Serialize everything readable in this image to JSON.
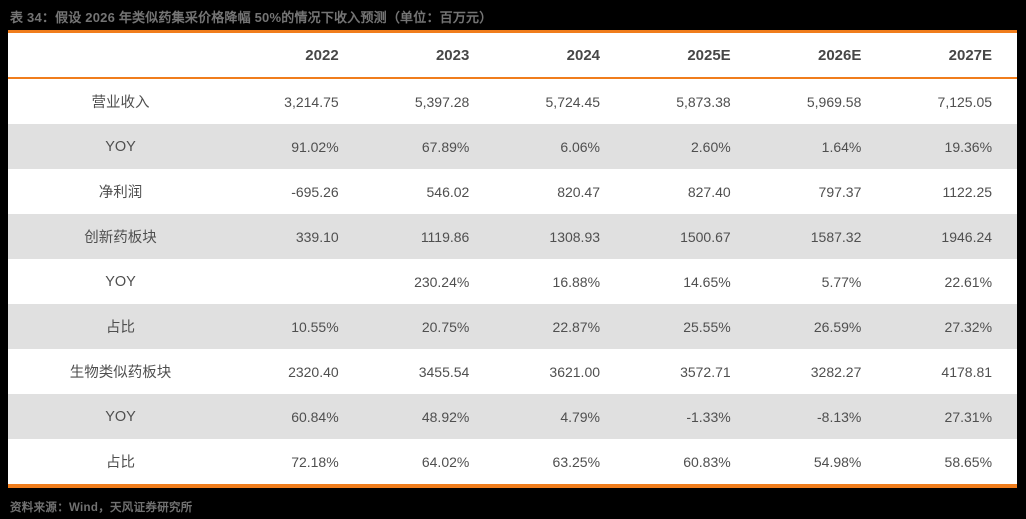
{
  "title": "表 34：假设 2026 年类似药集采价格降幅 50%的情况下收入预测（单位：百万元）",
  "source": "资料来源：Wind，天风证券研究所",
  "colors": {
    "accent_orange": "#F07D1C",
    "page_background": "#000000",
    "table_background": "#FFFFFF",
    "stripe_background": "#E0E0E0",
    "header_text": "#474747",
    "body_text": "#4F4F4F",
    "muted_text": "#747474"
  },
  "chart_data": {
    "type": "table",
    "title": "表 34：假设 2026 年类似药集采价格降幅 50%的情况下收入预测（单位：百万元）",
    "columns": [
      "",
      "2022",
      "2023",
      "2024",
      "2025E",
      "2026E",
      "2027E"
    ],
    "rows": [
      {
        "label": "营业收入",
        "values": [
          "3,214.75",
          "5,397.28",
          "5,724.45",
          "5,873.38",
          "5,969.58",
          "7,125.05"
        ]
      },
      {
        "label": "YOY",
        "values": [
          "91.02%",
          "67.89%",
          "6.06%",
          "2.60%",
          "1.64%",
          "19.36%"
        ]
      },
      {
        "label": "净利润",
        "values": [
          "-695.26",
          "546.02",
          "820.47",
          "827.40",
          "797.37",
          "1122.25"
        ]
      },
      {
        "label": "创新药板块",
        "values": [
          "339.10",
          "1119.86",
          "1308.93",
          "1500.67",
          "1587.32",
          "1946.24"
        ]
      },
      {
        "label": "YOY",
        "values": [
          "",
          "230.24%",
          "16.88%",
          "14.65%",
          "5.77%",
          "22.61%"
        ]
      },
      {
        "label": "占比",
        "values": [
          "10.55%",
          "20.75%",
          "22.87%",
          "25.55%",
          "26.59%",
          "27.32%"
        ]
      },
      {
        "label": "生物类似药板块",
        "values": [
          "2320.40",
          "3455.54",
          "3621.00",
          "3572.71",
          "3282.27",
          "4178.81"
        ]
      },
      {
        "label": "YOY",
        "values": [
          "60.84%",
          "48.92%",
          "4.79%",
          "-1.33%",
          "-8.13%",
          "27.31%"
        ]
      },
      {
        "label": "占比",
        "values": [
          "72.18%",
          "64.02%",
          "63.25%",
          "60.83%",
          "54.98%",
          "58.65%"
        ]
      }
    ]
  },
  "table": {
    "columns": [
      "",
      "2022",
      "2023",
      "2024",
      "2025E",
      "2026E",
      "2027E"
    ],
    "rows": [
      {
        "label": "营业收入",
        "values": [
          "3,214.75",
          "5,397.28",
          "5,724.45",
          "5,873.38",
          "5,969.58",
          "7,125.05"
        ]
      },
      {
        "label": "YOY",
        "values": [
          "91.02%",
          "67.89%",
          "6.06%",
          "2.60%",
          "1.64%",
          "19.36%"
        ]
      },
      {
        "label": "净利润",
        "values": [
          "-695.26",
          "546.02",
          "820.47",
          "827.40",
          "797.37",
          "1122.25"
        ]
      },
      {
        "label": "创新药板块",
        "values": [
          "339.10",
          "1119.86",
          "1308.93",
          "1500.67",
          "1587.32",
          "1946.24"
        ]
      },
      {
        "label": "YOY",
        "values": [
          "",
          "230.24%",
          "16.88%",
          "14.65%",
          "5.77%",
          "22.61%"
        ]
      },
      {
        "label": "占比",
        "values": [
          "10.55%",
          "20.75%",
          "22.87%",
          "25.55%",
          "26.59%",
          "27.32%"
        ]
      },
      {
        "label": "生物类似药板块",
        "values": [
          "2320.40",
          "3455.54",
          "3621.00",
          "3572.71",
          "3282.27",
          "4178.81"
        ]
      },
      {
        "label": "YOY",
        "values": [
          "60.84%",
          "48.92%",
          "4.79%",
          "-1.33%",
          "-8.13%",
          "27.31%"
        ]
      },
      {
        "label": "占比",
        "values": [
          "72.18%",
          "64.02%",
          "63.25%",
          "60.83%",
          "54.98%",
          "58.65%"
        ]
      }
    ]
  }
}
